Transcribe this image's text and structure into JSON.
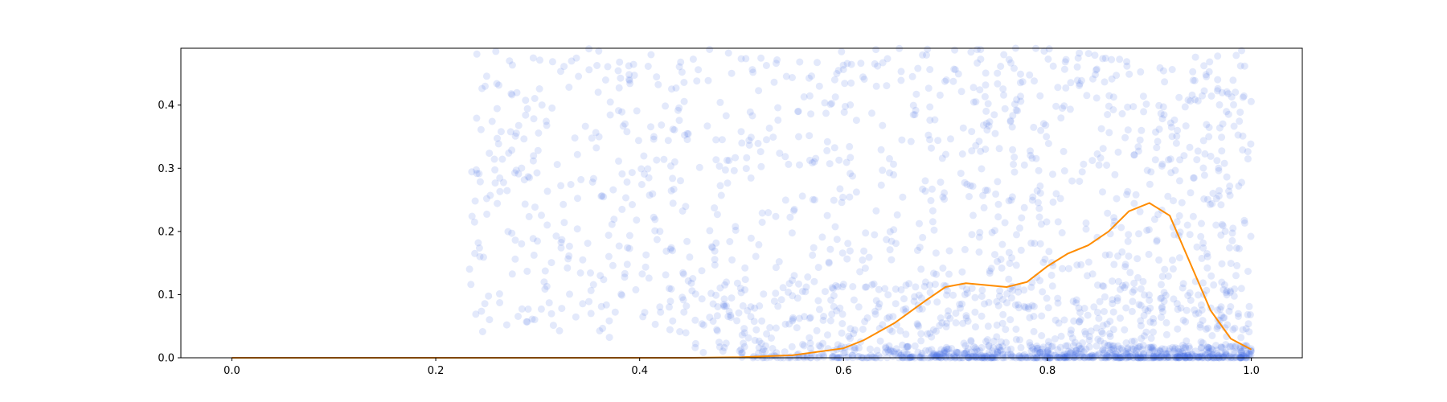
{
  "chart_data": {
    "type": "scatter",
    "xlim": [
      -0.05,
      1.05
    ],
    "ylim": [
      0.0,
      0.49
    ],
    "x_ticks": [
      "0.0",
      "0.2",
      "0.4",
      "0.6",
      "0.8",
      "1.0"
    ],
    "y_ticks": [
      "0.0",
      "0.1",
      "0.2",
      "0.3",
      "0.4"
    ],
    "grid": false,
    "legend": "none",
    "colors": {
      "points": "#4169e1",
      "curve": "#ff8c00"
    },
    "scatter": {
      "approx_point_count": 2200,
      "point_opacity": 0.15,
      "x_range": [
        0.23,
        1.0
      ],
      "cluster_at_zero_x_range": [
        0.5,
        1.0
      ]
    },
    "series": [
      {
        "type": "line",
        "x": [
          0.0,
          0.1,
          0.2,
          0.3,
          0.4,
          0.45,
          0.5,
          0.55,
          0.6,
          0.62,
          0.65,
          0.68,
          0.7,
          0.72,
          0.74,
          0.76,
          0.78,
          0.8,
          0.82,
          0.84,
          0.86,
          0.88,
          0.9,
          0.92,
          0.94,
          0.96,
          0.98,
          1.0
        ],
        "y": [
          0.0,
          0.0,
          0.0,
          0.0,
          0.0,
          0.0,
          0.001,
          0.004,
          0.015,
          0.028,
          0.055,
          0.09,
          0.112,
          0.118,
          0.115,
          0.112,
          0.12,
          0.145,
          0.165,
          0.178,
          0.2,
          0.232,
          0.245,
          0.225,
          0.15,
          0.075,
          0.03,
          0.013
        ]
      }
    ]
  }
}
